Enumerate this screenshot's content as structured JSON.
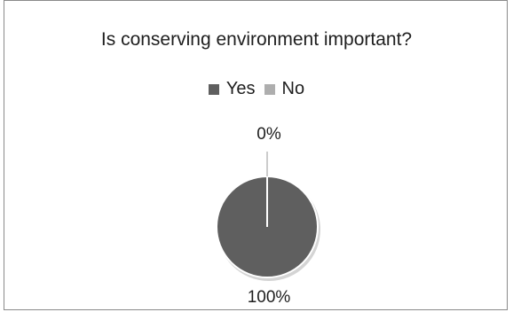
{
  "chart_data": {
    "type": "pie",
    "title": "Is conserving environment important?",
    "categories": [
      "Yes",
      "No"
    ],
    "values": [
      100,
      0
    ],
    "data_labels": [
      "100%",
      "0%"
    ],
    "colors": [
      "#5f5f5f",
      "#aeaeae"
    ],
    "legend_position": "top"
  }
}
